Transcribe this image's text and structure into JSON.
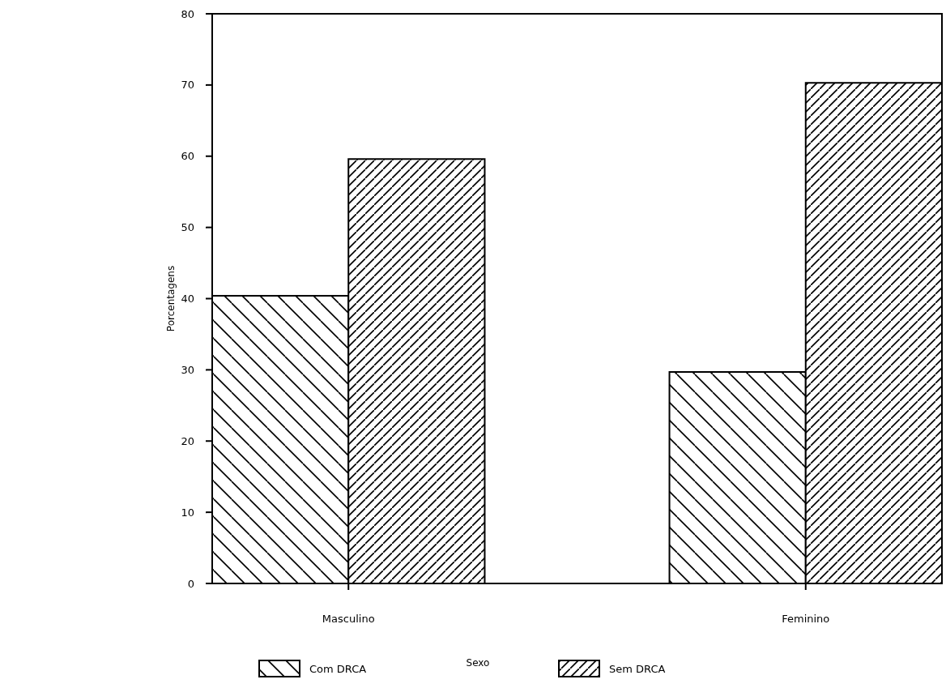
{
  "chart_data": {
    "type": "bar",
    "xlabel": "Sexo",
    "ylabel": "Porcentagens",
    "categories": [
      "Masculino",
      "Feminino"
    ],
    "series": [
      {
        "name": "Com DRCA",
        "color": "#000000",
        "values": [
          40.4,
          29.7
        ]
      },
      {
        "name": "Sem DRCA",
        "color": "#000000",
        "values": [
          59.6,
          70.3
        ]
      }
    ],
    "ylim": [
      0,
      80
    ],
    "yticks": [
      0,
      10,
      20,
      30,
      40,
      50,
      60,
      70,
      80
    ],
    "grid": false,
    "legend": "bottom"
  }
}
